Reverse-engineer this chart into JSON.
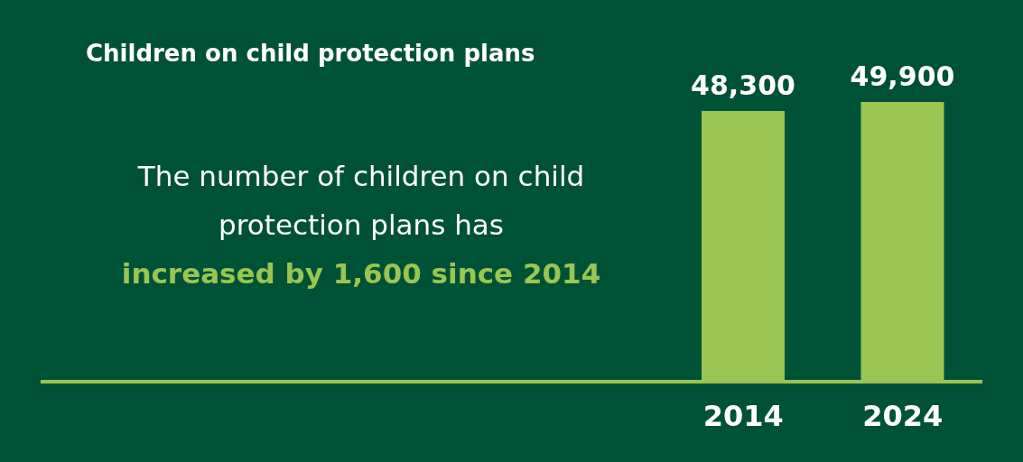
{
  "chart_data": {
    "type": "bar",
    "title": "Children on child protection plans",
    "annotations": [
      "The number of children on child protection plans has",
      "increased by 1,600 since 2014"
    ],
    "categories": [
      "2014",
      "2024"
    ],
    "values": [
      48300,
      49900
    ],
    "color": "#9bc552",
    "value_labels": [
      "48,300",
      "49,900"
    ],
    "grid": false,
    "legend": false
  }
}
